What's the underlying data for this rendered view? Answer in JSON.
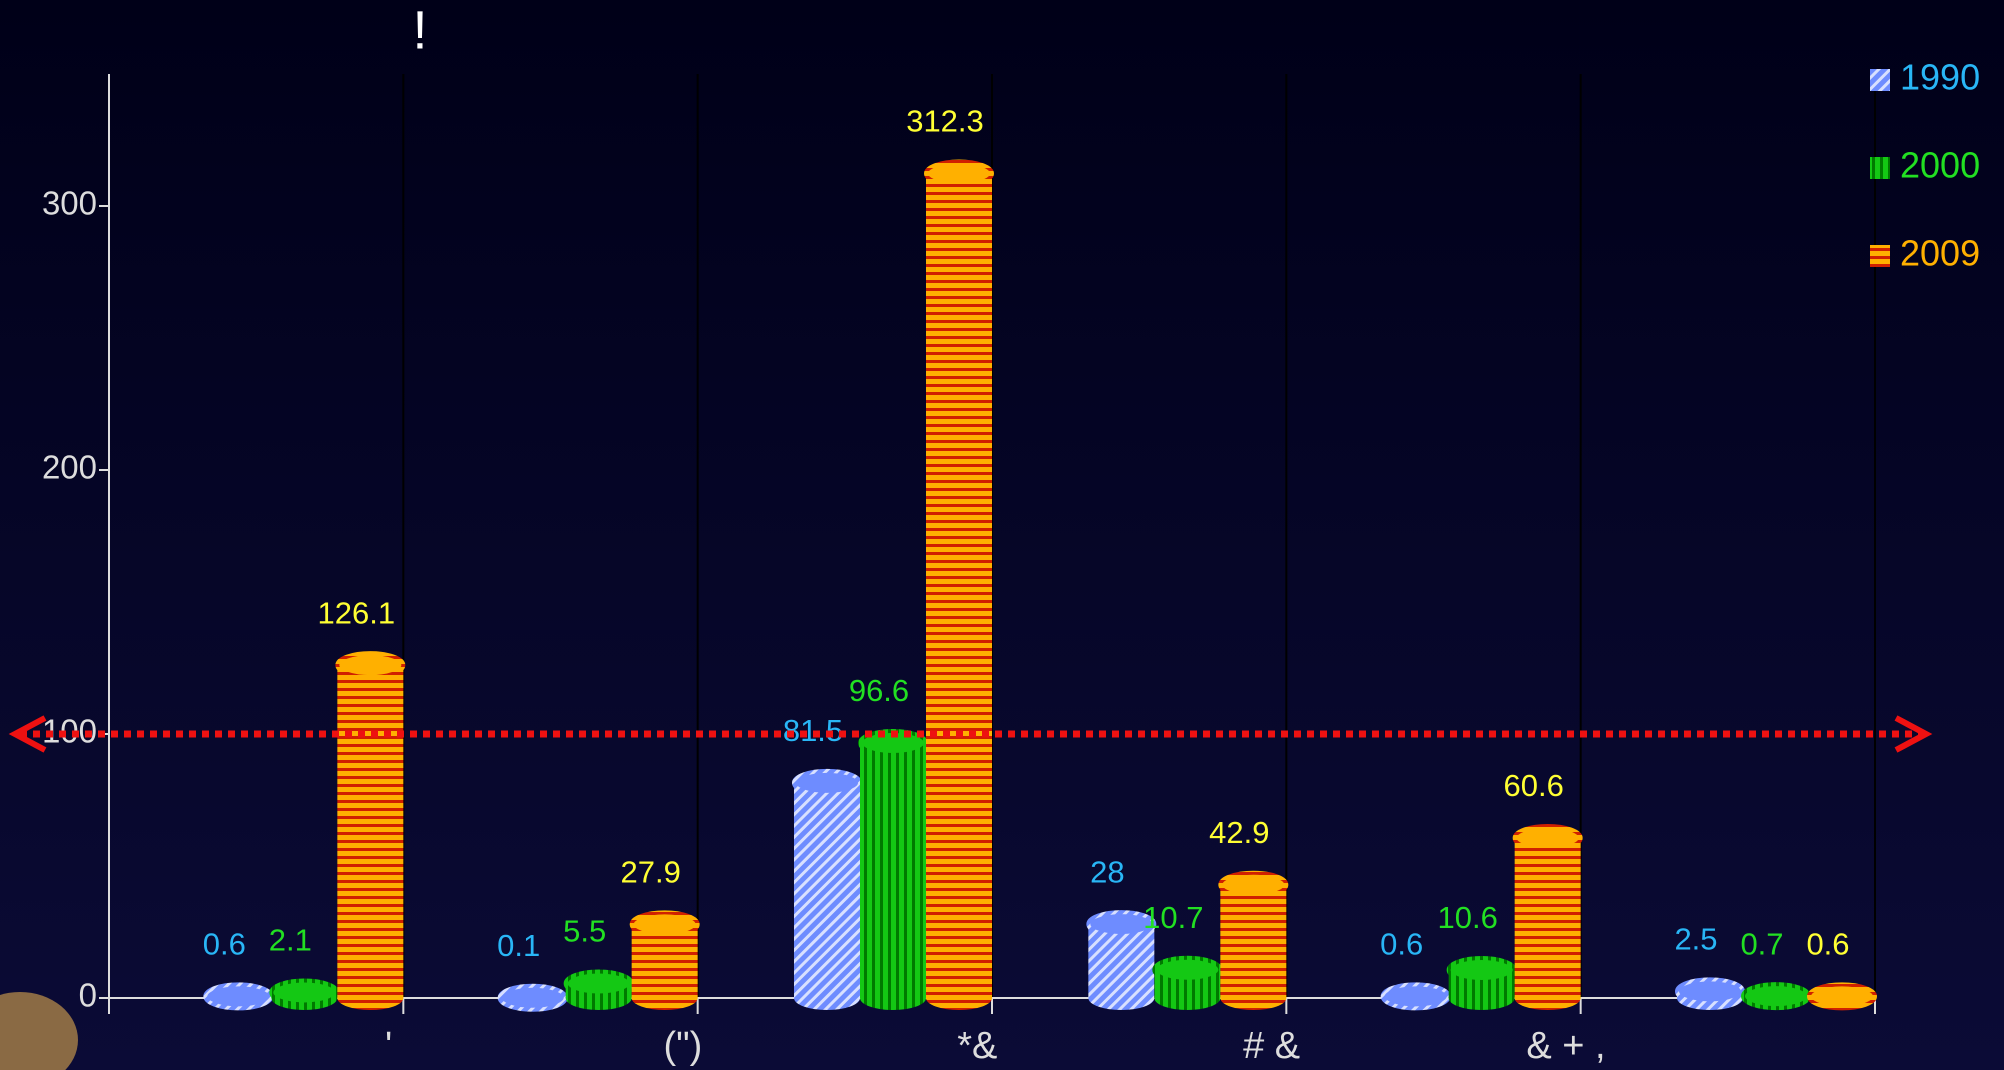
{
  "chart_data": {
    "type": "bar",
    "title": "!",
    "categories": [
      "'",
      "(\")",
      "*&",
      "# &",
      "& + ,",
      null
    ],
    "series": [
      {
        "name": "1990",
        "color": "#6e8cff",
        "label_color": "#29b6f6",
        "values": [
          0.6,
          0.1,
          81.5,
          28,
          0.6,
          2.5
        ]
      },
      {
        "name": "2000",
        "color": "#14c814",
        "label_color": "#22e022",
        "values": [
          2.1,
          5.5,
          96.6,
          10.7,
          10.6,
          0.7
        ]
      },
      {
        "name": "2009",
        "color": "#ffb000",
        "label_color": "#ffff33",
        "values": [
          126.1,
          27.9,
          312.3,
          42.9,
          60.6,
          0.6
        ]
      }
    ],
    "ylim": [
      0,
      350
    ],
    "yticks": [
      0,
      100,
      200,
      300
    ],
    "reference_line": 100,
    "reference_color": "#ee1111",
    "legend": "top-right"
  }
}
